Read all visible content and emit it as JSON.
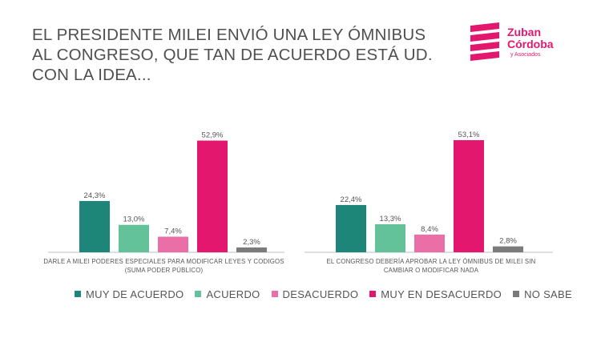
{
  "title": "EL PRESIDENTE MILEI ENVIÓ UNA LEY ÓMNIBUS AL CONGRESO, QUE TAN DE ACUERDO ESTÁ UD. CON LA IDEA...",
  "logo": {
    "line1": "Zuban",
    "line2": "Córdoba",
    "line3": "y Asociados",
    "color": "#e4176f"
  },
  "chart_data": {
    "type": "bar",
    "categories": [
      "DARLE A MILEI PODERES ESPECIALES PARA MODIFICAR LEYES Y CODIGOS (SUMA PODER PÚBLICO)",
      "EL CONGRESO DEBERÍA APROBAR LA LEY ÓMNIBUS DE MILEI SIN CAMBIAR O MODIFICAR NADA"
    ],
    "series": [
      {
        "name": "MUY DE ACUERDO",
        "color": "#1e8579",
        "values": [
          24.3,
          22.4
        ],
        "labels": [
          "24,3%",
          "22,4%"
        ]
      },
      {
        "name": "ACUERDO",
        "color": "#64c29b",
        "values": [
          13.0,
          13.3
        ],
        "labels": [
          "13,0%",
          "13,3%"
        ]
      },
      {
        "name": "DESACUERDO",
        "color": "#ea6fa7",
        "values": [
          7.4,
          8.4
        ],
        "labels": [
          "7,4%",
          "8,4%"
        ]
      },
      {
        "name": "MUY EN DESACUERDO",
        "color": "#e4176f",
        "values": [
          52.9,
          53.1
        ],
        "labels": [
          "52,9%",
          "53,1%"
        ]
      },
      {
        "name": "NO SABE",
        "color": "#7b7b7b",
        "values": [
          2.3,
          2.8
        ],
        "labels": [
          "2,3%",
          "2,8%"
        ]
      }
    ],
    "ylim": [
      0,
      55
    ],
    "grid": false,
    "legend_position": "bottom"
  }
}
